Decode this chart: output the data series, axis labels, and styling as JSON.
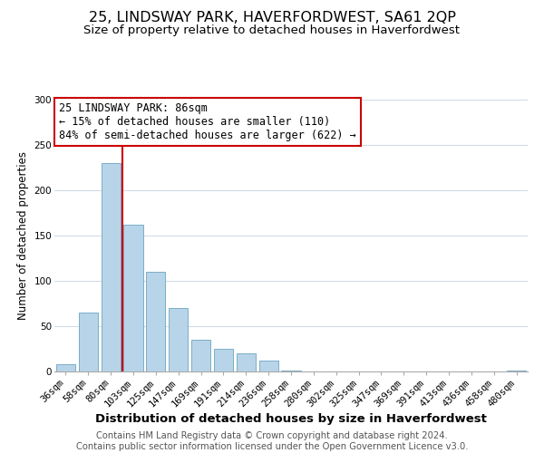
{
  "title": "25, LINDSWAY PARK, HAVERFORDWEST, SA61 2QP",
  "subtitle": "Size of property relative to detached houses in Haverfordwest",
  "xlabel": "Distribution of detached houses by size in Haverfordwest",
  "ylabel": "Number of detached properties",
  "bar_labels": [
    "36sqm",
    "58sqm",
    "80sqm",
    "103sqm",
    "125sqm",
    "147sqm",
    "169sqm",
    "191sqm",
    "214sqm",
    "236sqm",
    "258sqm",
    "280sqm",
    "302sqm",
    "325sqm",
    "347sqm",
    "369sqm",
    "391sqm",
    "413sqm",
    "436sqm",
    "458sqm",
    "480sqm"
  ],
  "bar_values": [
    8,
    65,
    230,
    162,
    110,
    70,
    35,
    25,
    20,
    12,
    1,
    0,
    0,
    0,
    0,
    0,
    0,
    0,
    0,
    0,
    1
  ],
  "bar_color": "#b8d4e8",
  "bar_edge_color": "#7aaec8",
  "vline_x_index": 2,
  "vline_color": "#cc0000",
  "ylim": [
    0,
    300
  ],
  "yticks": [
    0,
    50,
    100,
    150,
    200,
    250,
    300
  ],
  "annotation_title": "25 LINDSWAY PARK: 86sqm",
  "annotation_line1": "← 15% of detached houses are smaller (110)",
  "annotation_line2": "84% of semi-detached houses are larger (622) →",
  "annotation_box_edge": "#cc0000",
  "footer_line1": "Contains HM Land Registry data © Crown copyright and database right 2024.",
  "footer_line2": "Contains public sector information licensed under the Open Government Licence v3.0.",
  "background_color": "#ffffff",
  "grid_color": "#d0dce8",
  "title_fontsize": 11.5,
  "subtitle_fontsize": 9.5,
  "xlabel_fontsize": 9.5,
  "ylabel_fontsize": 8.5,
  "tick_fontsize": 7.5,
  "annotation_fontsize": 8.5,
  "footer_fontsize": 7.2
}
